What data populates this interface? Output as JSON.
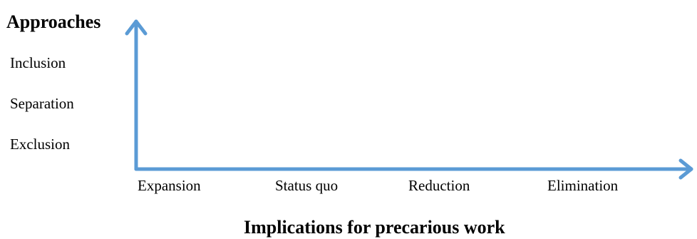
{
  "y_axis": {
    "title": "Approaches",
    "categories": [
      "Inclusion",
      "Separation",
      "Exclusion"
    ]
  },
  "x_axis": {
    "title": "Implications for precarious work",
    "categories": [
      "Expansion",
      "Status quo",
      "Reduction",
      "Elimination"
    ]
  },
  "colors": {
    "axis": "#5b9bd5",
    "text": "#000000"
  }
}
